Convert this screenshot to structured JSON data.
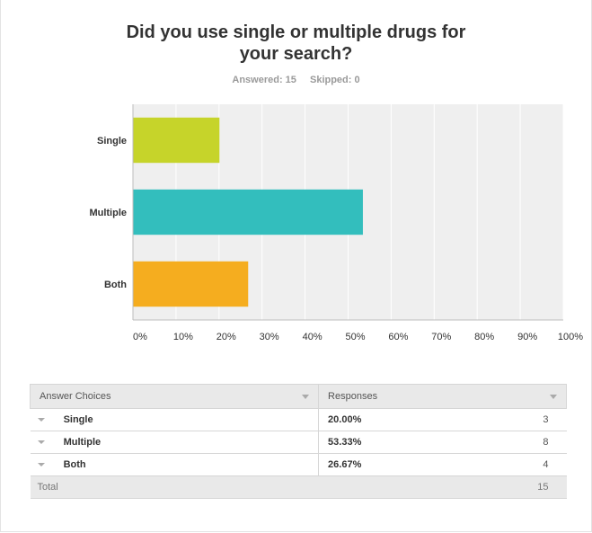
{
  "question": {
    "title_line1": "Did you use single or multiple drugs for",
    "title_line2": "your search?",
    "answered": "Answered: 15",
    "skipped": "Skipped: 0"
  },
  "chart_data": {
    "type": "bar",
    "orientation": "horizontal",
    "title": "Did you use single or multiple drugs for your search?",
    "categories": [
      "Single",
      "Multiple",
      "Both"
    ],
    "values": [
      20.0,
      53.33,
      26.67
    ],
    "colors": [
      "#c6d42a",
      "#33bebd",
      "#f5ad1f"
    ],
    "xlim": [
      0,
      100
    ],
    "x_ticks": [
      "0%",
      "10%",
      "20%",
      "30%",
      "40%",
      "50%",
      "60%",
      "70%",
      "80%",
      "90%",
      "100%"
    ],
    "grid": true,
    "plot_background": "#efefef"
  },
  "table": {
    "headers": [
      "Answer Choices",
      "Responses"
    ],
    "rows": [
      {
        "choice": "Single",
        "percent": "20.00%",
        "count": "3"
      },
      {
        "choice": "Multiple",
        "percent": "53.33%",
        "count": "8"
      },
      {
        "choice": "Both",
        "percent": "26.67%",
        "count": "4"
      }
    ],
    "total_label": "Total",
    "total_value": "15"
  }
}
